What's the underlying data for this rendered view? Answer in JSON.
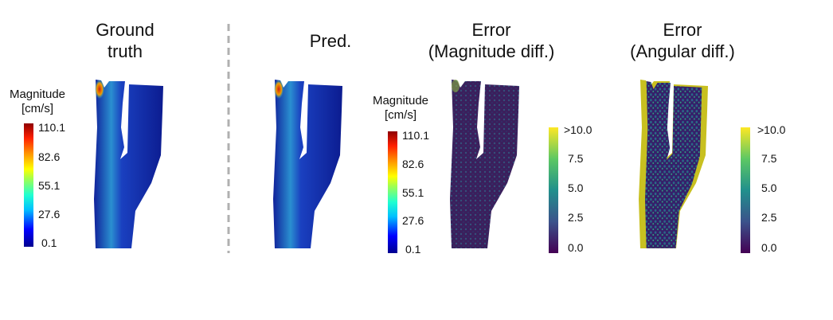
{
  "panels": [
    {
      "title": "Ground\ntruth"
    },
    {
      "title": "Pred."
    },
    {
      "title": "Error\n(Magnitude diff.)"
    },
    {
      "title": "Error\n(Angular diff.)"
    }
  ],
  "colorbars": {
    "magnitude": {
      "label": "Magnitude\n[cm/s]",
      "ticks": [
        "110.1",
        "82.6",
        "55.1",
        "27.6",
        "0.1"
      ],
      "colormap": "jet"
    },
    "error": {
      "ticks": [
        ">10.0",
        "7.5",
        "5.0",
        "2.5",
        "0.0"
      ],
      "colormap": "viridis"
    }
  },
  "colors": {
    "divider": "#b0b0b0",
    "vessel_low": "#1a2fb8",
    "vessel_mid": "#2aa0c8",
    "error_low": "#3b1f5c",
    "error_high": "#c8c020"
  }
}
